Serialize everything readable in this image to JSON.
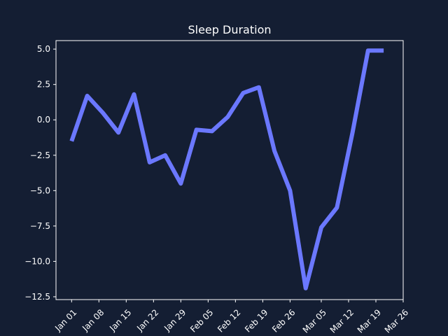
{
  "chart_data": {
    "type": "line",
    "title": "Sleep Duration",
    "xlabel": "",
    "ylabel": "",
    "x_tick_labels": [
      "Jan 01",
      "Jan 08",
      "Jan 15",
      "Jan 22",
      "Jan 29",
      "Feb 05",
      "Feb 12",
      "Feb 19",
      "Feb 26",
      "Mar 05",
      "Mar 12",
      "Mar 19",
      "Mar 26"
    ],
    "x_tick_values": [
      "2024-01-01",
      "2024-01-08",
      "2024-01-15",
      "2024-01-22",
      "2024-01-29",
      "2024-02-05",
      "2024-02-12",
      "2024-02-19",
      "2024-02-26",
      "2024-03-05",
      "2024-03-12",
      "2024-03-19",
      "2024-03-26"
    ],
    "y_tick_values": [
      5.0,
      2.5,
      0.0,
      -2.5,
      -5.0,
      -7.5,
      -10.0,
      -12.5
    ],
    "y_tick_labels": [
      "5.0",
      "2.5",
      "0.0",
      "−2.5",
      "−5.0",
      "−7.5",
      "−10.0",
      "−12.5"
    ],
    "xlim": [
      "2023-12-28",
      "2024-03-26"
    ],
    "ylim": [
      -12.7,
      5.6
    ],
    "grid": false,
    "series": [
      {
        "color": "#6b78ff",
        "x": [
          "2024-01-01",
          "2024-01-05",
          "2024-01-09",
          "2024-01-13",
          "2024-01-17",
          "2024-01-21",
          "2024-01-25",
          "2024-01-29",
          "2024-02-02",
          "2024-02-06",
          "2024-02-10",
          "2024-02-14",
          "2024-02-18",
          "2024-02-22",
          "2024-02-26",
          "2024-03-01",
          "2024-03-05",
          "2024-03-09",
          "2024-03-13",
          "2024-03-17",
          "2024-03-21"
        ],
        "y": [
          -1.5,
          1.7,
          0.5,
          -0.9,
          1.8,
          -3.0,
          -2.5,
          -4.5,
          -0.7,
          -0.8,
          0.2,
          1.9,
          2.3,
          -2.2,
          -5.0,
          -11.9,
          -7.6,
          -6.2,
          -0.9,
          4.9,
          4.9
        ]
      }
    ]
  },
  "colors": {
    "background": "#141e33",
    "axes": "#ffffff",
    "text": "#ffffff",
    "line": "#6b78ff"
  }
}
